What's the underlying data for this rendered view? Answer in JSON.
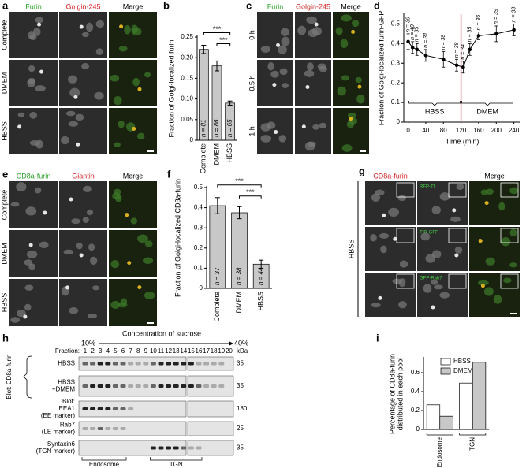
{
  "figure": {
    "a": {
      "letter": "a",
      "columns": [
        "Furin",
        "Golgin-245",
        "Merge"
      ],
      "column_colors": [
        "#2ca02c",
        "#d62728",
        "#000000"
      ],
      "rows": [
        "Complete",
        "DMEM",
        "HBSS"
      ]
    },
    "c": {
      "letter": "c",
      "columns": [
        "Furin",
        "Golgin-245",
        "Merge"
      ],
      "column_colors": [
        "#2ca02c",
        "#d62728",
        "#000000"
      ],
      "rows": [
        "0 h",
        "0.5 h",
        "1 h"
      ]
    },
    "e": {
      "letter": "e",
      "columns": [
        "CD8a-furin",
        "Giantin",
        "Merge"
      ],
      "column_colors": [
        "#2ca02c",
        "#d62728",
        "#000000"
      ],
      "rows": [
        "Complete",
        "DMEM",
        "HBSS"
      ]
    },
    "g": {
      "letter": "g",
      "columns": [
        "CD8a-furin",
        "Merge"
      ],
      "column_colors": [
        "#d62728",
        "#000000"
      ],
      "row_label": "HBSS",
      "insets": [
        "RFP-Tf",
        "TfR-GFP",
        "GFP-Rab7"
      ]
    },
    "h": {
      "letter": "h",
      "title": "Concentration of sucrose",
      "low": "10%",
      "high": "40%",
      "fraction_label": "Fraction:",
      "fractions": [
        1,
        2,
        3,
        4,
        5,
        6,
        7,
        8,
        9,
        10,
        11,
        12,
        13,
        14,
        15,
        16,
        17,
        18,
        19,
        20
      ],
      "kda_label": "kDa",
      "blot_label": "Blot: CD8a-furin",
      "rows": [
        {
          "lines": [
            "HBSS"
          ],
          "kda": 35
        },
        {
          "lines": [
            "HBSS",
            "+DMEM"
          ],
          "kda": 35
        },
        {
          "lines": [
            "Blot:",
            "EEA1",
            "(EE marker)"
          ],
          "kda": 180
        },
        {
          "lines": [
            "Rab7",
            "(LE marker)"
          ],
          "kda": 25
        },
        {
          "lines": [
            "Syntaxin6",
            "(TGN marker)"
          ],
          "kda": 35
        }
      ],
      "pools": [
        "Endosome",
        "TGN"
      ]
    }
  },
  "chart_data": [
    {
      "panel": "b",
      "type": "bar",
      "categories": [
        "Complete",
        "DMEM",
        "HBSS"
      ],
      "values": [
        0.22,
        0.18,
        0.09
      ],
      "errors": [
        0.01,
        0.012,
        0.005
      ],
      "bar_labels": [
        "n = 81",
        "n = 86",
        "n = 65"
      ],
      "significance": [
        "***",
        "***"
      ],
      "color": "#c8c8c8",
      "ylabel": "Fraction of Golgi-localized furin",
      "ylim": [
        0,
        0.25
      ],
      "yticks": [
        0,
        0.05,
        {
          "value": 0.1,
          "label": "0.10"
        },
        0.15,
        {
          "value": 0.2,
          "label": "0.20"
        },
        0.25
      ]
    },
    {
      "panel": "d",
      "type": "line",
      "x": [
        0,
        10,
        20,
        40,
        80,
        110,
        125,
        140,
        160,
        200,
        240
      ],
      "values": [
        0.41,
        0.38,
        0.37,
        0.34,
        0.32,
        0.29,
        0.28,
        0.37,
        0.44,
        0.45,
        0.47
      ],
      "errors": [
        0.04,
        0.03,
        0.03,
        0.03,
        0.04,
        0.03,
        0.03,
        0.03,
        0.02,
        0.04,
        0.03
      ],
      "point_labels": [
        "n = 39",
        "n = 40",
        "n = 35",
        "n = 31",
        "n = 38",
        "n = 38",
        "n = 34",
        "n = 35",
        "n = 36",
        "n = 39",
        "n = 33"
      ],
      "color": "#000000",
      "switch_x": 120,
      "switch_color": "#d9808a",
      "phases": [
        "HBSS",
        "DMEM"
      ],
      "xlabel": "Time (min)",
      "ylabel": "Fraction of Golgi-localized furin-GFP",
      "xlim": [
        -10,
        255
      ],
      "xticks": [
        0,
        40,
        80,
        120,
        160,
        200,
        240
      ],
      "ylim": [
        0,
        0.55
      ],
      "yticks": [
        0,
        0.1,
        0.2,
        0.3,
        0.4,
        0.5
      ]
    },
    {
      "panel": "f",
      "type": "bar",
      "categories": [
        "Complete",
        "DMEM",
        "HBSS"
      ],
      "values": [
        0.41,
        0.375,
        0.12
      ],
      "errors": [
        0.04,
        0.03,
        0.02
      ],
      "bar_labels": [
        "n = 37",
        "n = 38",
        "n = 44"
      ],
      "significance": [
        "***",
        "***"
      ],
      "color": "#c8c8c8",
      "ylabel": "Fraction of Golgi-localized CD8a-furin",
      "ylim": [
        0,
        0.5
      ],
      "yticks": [
        0,
        0.1,
        0.2,
        0.3,
        0.4,
        0.5
      ]
    },
    {
      "panel": "i",
      "type": "grouped_bar",
      "categories": [
        "Endosome",
        "TGN"
      ],
      "series": [
        {
          "name": "HBSS",
          "color": "#ffffff",
          "values": [
            0.26,
            0.49
          ]
        },
        {
          "name": "DMEM",
          "color": "#c8c8c8",
          "values": [
            0.14,
            0.71
          ]
        }
      ],
      "ylabel": [
        "Percentage of CD8a-furin",
        "distributed in each pool"
      ],
      "ylim": [
        0,
        0.75
      ],
      "yticks": [
        0,
        0.2,
        0.4,
        0.6
      ]
    }
  ]
}
